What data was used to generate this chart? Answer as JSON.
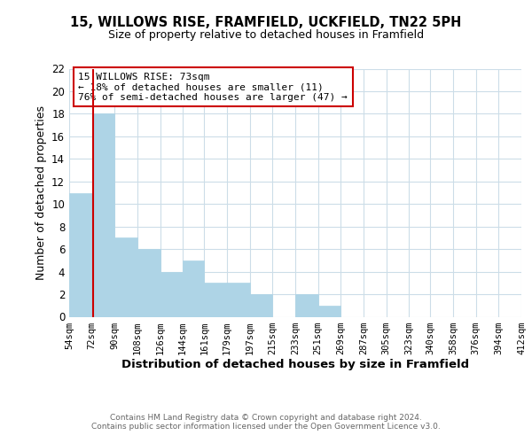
{
  "title1": "15, WILLOWS RISE, FRAMFIELD, UCKFIELD, TN22 5PH",
  "title2": "Size of property relative to detached houses in Framfield",
  "xlabel": "Distribution of detached houses by size in Framfield",
  "ylabel": "Number of detached properties",
  "bin_edges": [
    54,
    72,
    90,
    108,
    126,
    144,
    161,
    179,
    197,
    215,
    233,
    251,
    269,
    287,
    305,
    323,
    340,
    358,
    376,
    394,
    412
  ],
  "counts": [
    11,
    18,
    7,
    6,
    4,
    5,
    3,
    3,
    2,
    0,
    2,
    1,
    0,
    0,
    0,
    0,
    0,
    0,
    0,
    0
  ],
  "bar_color": "#aed4e6",
  "vline_x": 73,
  "vline_color": "#cc0000",
  "annotation_line1": "15 WILLOWS RISE: 73sqm",
  "annotation_line2": "← 18% of detached houses are smaller (11)",
  "annotation_line3": "76% of semi-detached houses are larger (47) →",
  "ylim": [
    0,
    22
  ],
  "yticks": [
    0,
    2,
    4,
    6,
    8,
    10,
    12,
    14,
    16,
    18,
    20,
    22
  ],
  "footer1": "Contains HM Land Registry data © Crown copyright and database right 2024.",
  "footer2": "Contains public sector information licensed under the Open Government Licence v3.0.",
  "bg_color": "#ffffff",
  "grid_color": "#ccdde8",
  "tick_labels": [
    "54sqm",
    "72sqm",
    "90sqm",
    "108sqm",
    "126sqm",
    "144sqm",
    "161sqm",
    "179sqm",
    "197sqm",
    "215sqm",
    "233sqm",
    "251sqm",
    "269sqm",
    "287sqm",
    "305sqm",
    "323sqm",
    "340sqm",
    "358sqm",
    "376sqm",
    "394sqm",
    "412sqm"
  ]
}
